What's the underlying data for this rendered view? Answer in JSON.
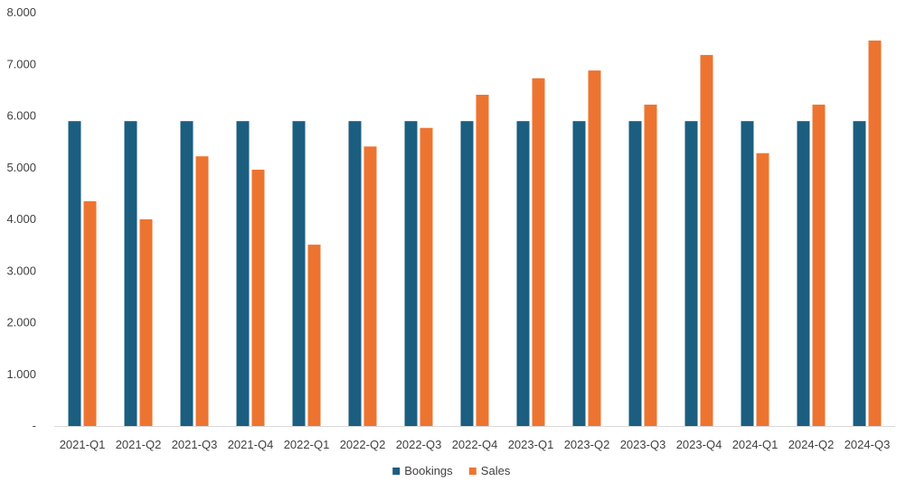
{
  "chart_data": {
    "type": "bar",
    "categories": [
      "2021-Q1",
      "2021-Q2",
      "2021-Q3",
      "2021-Q4",
      "2022-Q1",
      "2022-Q2",
      "2022-Q3",
      "2022-Q4",
      "2023-Q1",
      "2023-Q2",
      "2023-Q3",
      "2023-Q4",
      "2024-Q1",
      "2024-Q2",
      "2024-Q3"
    ],
    "series": [
      {
        "name": "Bookings",
        "color": "#1b5e80",
        "values": [
          5900,
          5900,
          5900,
          5900,
          5900,
          5900,
          5900,
          5900,
          5900,
          5900,
          5900,
          5900,
          5900,
          5900,
          5900
        ]
      },
      {
        "name": "Sales",
        "color": "#ed7430",
        "values": [
          4350,
          4000,
          5220,
          4960,
          3510,
          5410,
          5770,
          6410,
          6730,
          6880,
          6220,
          7180,
          5280,
          6220,
          7460
        ]
      }
    ],
    "ylim": [
      0,
      8000
    ],
    "yticks": [
      0,
      1000,
      2000,
      3000,
      4000,
      5000,
      6000,
      7000,
      8000
    ],
    "ytick_labels": [
      "-",
      "1.000",
      "2.000",
      "3.000",
      "4.000",
      "5.000",
      "6.000",
      "7.000",
      "8.000"
    ],
    "grid": false,
    "legend_position": "bottom"
  }
}
